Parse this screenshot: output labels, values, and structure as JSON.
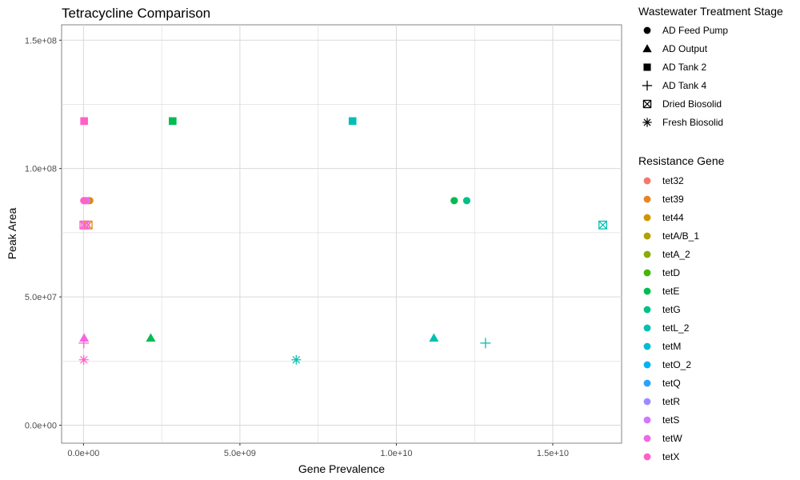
{
  "chart_data": {
    "type": "scatter",
    "title": "Tetracycline Comparison",
    "xlabel": "Gene Prevalence",
    "ylabel": "Peak Area",
    "xlim": [
      -700000000,
      17200000000
    ],
    "ylim": [
      -7000000,
      156000000
    ],
    "x_ticks": [
      0,
      5000000000,
      10000000000,
      15000000000
    ],
    "x_tick_labels": [
      "0.0e+00",
      "5.0e+09",
      "1.0e+10",
      "1.5e+10"
    ],
    "y_ticks": [
      0,
      50000000,
      100000000,
      150000000
    ],
    "y_tick_labels": [
      "0.0e+00",
      "5.0e+07",
      "1.0e+08",
      "1.5e+08"
    ],
    "grid": true,
    "shape_legend": {
      "title": "Wastewater Treatment Stage",
      "items": [
        {
          "label": "AD Feed Pump",
          "shape": "circle"
        },
        {
          "label": "AD Output",
          "shape": "triangle"
        },
        {
          "label": "AD Tank 2",
          "shape": "square"
        },
        {
          "label": "AD Tank 4",
          "shape": "plus"
        },
        {
          "label": "Dried Biosolid",
          "shape": "square-cross"
        },
        {
          "label": "Fresh Biosolid",
          "shape": "asterisk"
        }
      ]
    },
    "color_legend": {
      "title": "Resistance Gene",
      "items": [
        {
          "label": "tet32",
          "color": "#F8766D"
        },
        {
          "label": "tet39",
          "color": "#E7851E"
        },
        {
          "label": "tet44",
          "color": "#D09400"
        },
        {
          "label": "tetA/B_1",
          "color": "#B2A100"
        },
        {
          "label": "tetA_2",
          "color": "#89AC00"
        },
        {
          "label": "tetD",
          "color": "#45B500"
        },
        {
          "label": "tetE",
          "color": "#00BC51"
        },
        {
          "label": "tetG",
          "color": "#00C087"
        },
        {
          "label": "tetL_2",
          "color": "#00C0B2"
        },
        {
          "label": "tetM",
          "color": "#00BCD6"
        },
        {
          "label": "tetO_2",
          "color": "#00B3F2"
        },
        {
          "label": "tetQ",
          "color": "#29A3FF"
        },
        {
          "label": "tetR",
          "color": "#9C8DFF"
        },
        {
          "label": "tetS",
          "color": "#D277FF"
        },
        {
          "label": "tetW",
          "color": "#F166E8"
        },
        {
          "label": "tetX",
          "color": "#FF61C7"
        }
      ]
    },
    "points": [
      {
        "x": 20000000,
        "y": 118500000,
        "stage": "AD Tank 2",
        "gene": "tetX"
      },
      {
        "x": 2850000000,
        "y": 118500000,
        "stage": "AD Tank 2",
        "gene": "tetE"
      },
      {
        "x": 8600000000,
        "y": 118500000,
        "stage": "AD Tank 2",
        "gene": "tetL_2"
      },
      {
        "x": 200000000,
        "y": 87500000,
        "stage": "AD Feed Pump",
        "gene": "tet39"
      },
      {
        "x": 150000000,
        "y": 87500000,
        "stage": "AD Feed Pump",
        "gene": "tet44"
      },
      {
        "x": 100000000,
        "y": 87500000,
        "stage": "AD Feed Pump",
        "gene": "tetS"
      },
      {
        "x": 50000000,
        "y": 87500000,
        "stage": "AD Feed Pump",
        "gene": "tetW"
      },
      {
        "x": 10000000,
        "y": 87500000,
        "stage": "AD Feed Pump",
        "gene": "tetX"
      },
      {
        "x": 11850000000,
        "y": 87500000,
        "stage": "AD Feed Pump",
        "gene": "tetE"
      },
      {
        "x": 12250000000,
        "y": 87500000,
        "stage": "AD Feed Pump",
        "gene": "tetG"
      },
      {
        "x": 150000000,
        "y": 78000000,
        "stage": "Dried Biosolid",
        "gene": "tet39"
      },
      {
        "x": 60000000,
        "y": 78000000,
        "stage": "Dried Biosolid",
        "gene": "tetW"
      },
      {
        "x": 10000000,
        "y": 78000000,
        "stage": "Dried Biosolid",
        "gene": "tetX"
      },
      {
        "x": 16600000000,
        "y": 78000000,
        "stage": "Dried Biosolid",
        "gene": "tetL_2"
      },
      {
        "x": 20000000,
        "y": 34000000,
        "stage": "AD Output",
        "gene": "tetW"
      },
      {
        "x": 2150000000,
        "y": 34000000,
        "stage": "AD Output",
        "gene": "tetE"
      },
      {
        "x": 11200000000,
        "y": 34000000,
        "stage": "AD Output",
        "gene": "tetL_2"
      },
      {
        "x": 10000000,
        "y": 32000000,
        "stage": "AD Tank 4",
        "gene": "tetX"
      },
      {
        "x": 12850000000,
        "y": 32000000,
        "stage": "AD Tank 4",
        "gene": "tetL_2"
      },
      {
        "x": 10000000,
        "y": 25500000,
        "stage": "Fresh Biosolid",
        "gene": "tetX"
      },
      {
        "x": 6800000000,
        "y": 25500000,
        "stage": "Fresh Biosolid",
        "gene": "tetL_2"
      }
    ]
  }
}
